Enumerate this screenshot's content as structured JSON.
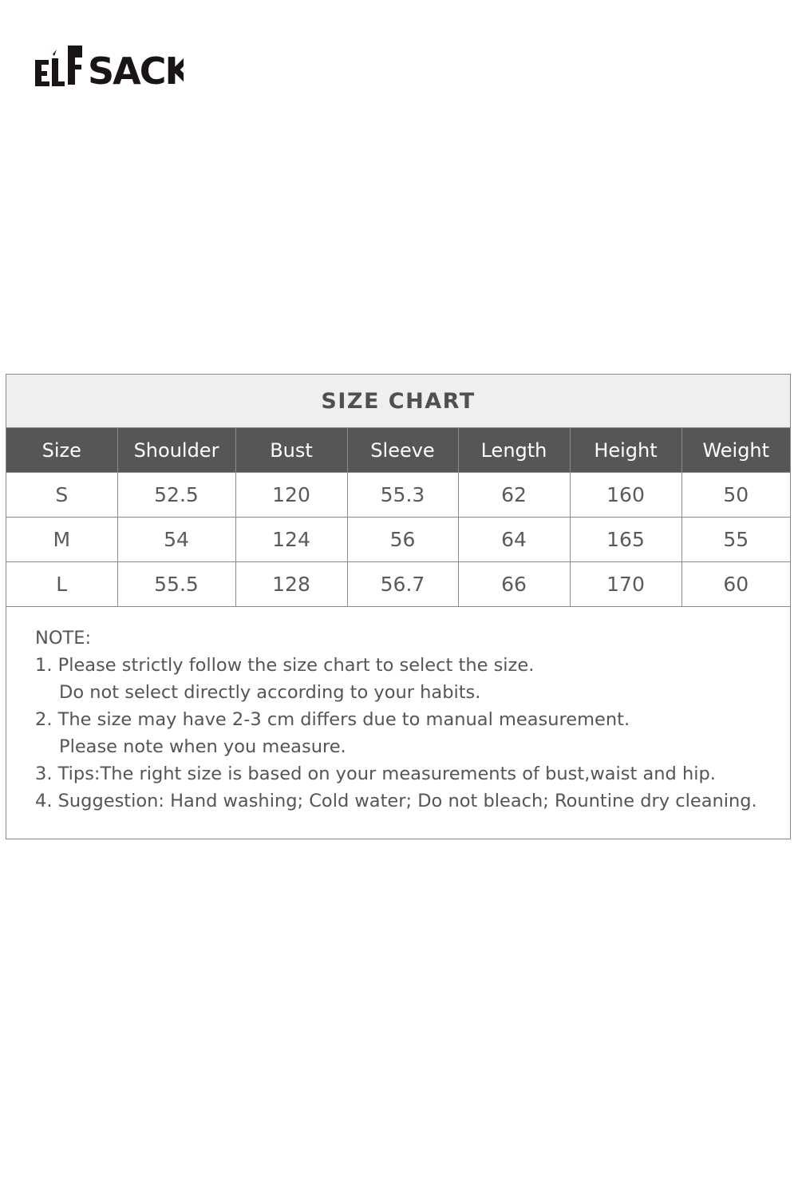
{
  "logo": {
    "text": "ELFSACK"
  },
  "size_chart": {
    "title": "SIZE CHART",
    "headers": [
      "Size",
      "Shoulder",
      "Bust",
      "Sleeve",
      "Length",
      "Height",
      "Weight"
    ],
    "rows": [
      [
        "S",
        "52.5",
        "120",
        "55.3",
        "62",
        "160",
        "50"
      ],
      [
        "M",
        "54",
        "124",
        "56",
        "64",
        "165",
        "55"
      ],
      [
        "L",
        "55.5",
        "128",
        "56.7",
        "66",
        "170",
        "60"
      ]
    ]
  },
  "notes": {
    "heading": "NOTE:",
    "lines": [
      "1. Please strictly follow the size chart to select the size.",
      "Do not select directly according to your habits.",
      "2. The size may have 2-3 cm differs due to manual measurement.",
      "Please note when you measure.",
      "3. Tips:The right size is based on your measurements of bust,waist and hip.",
      "4. Suggestion: Hand washing; Cold water; Do not bleach; Rountine dry cleaning."
    ]
  }
}
